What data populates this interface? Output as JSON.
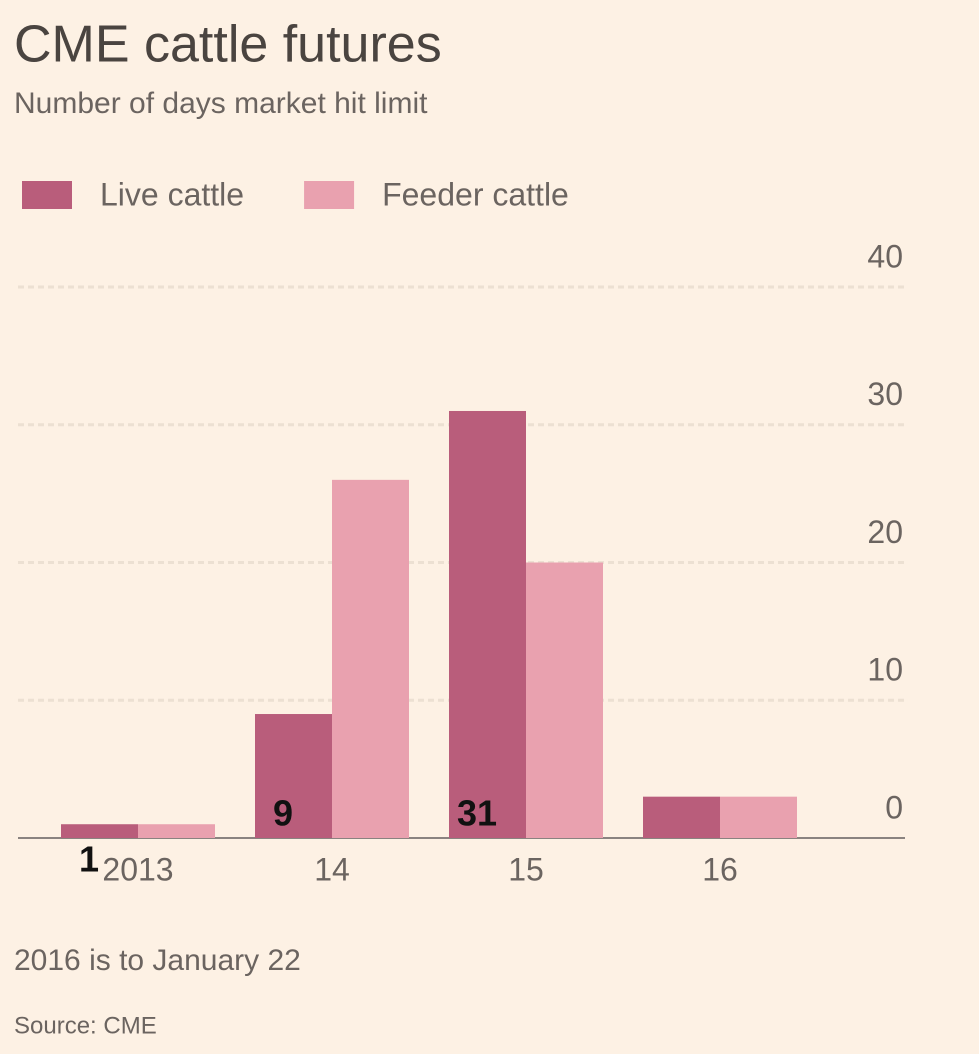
{
  "chart_data": {
    "type": "bar",
    "title": "CME cattle futures",
    "subtitle": "Number of days market hit limit",
    "categories": [
      "2013",
      "14",
      "15",
      "16"
    ],
    "series": [
      {
        "name": "Live cattle",
        "color": "#b95d7b",
        "values": [
          1,
          9,
          31,
          3
        ],
        "value_labels": [
          "1",
          "9",
          "31",
          null
        ]
      },
      {
        "name": "Feeder cattle",
        "color": "#e9a1af",
        "values": [
          1,
          26,
          20,
          3
        ]
      }
    ],
    "ylim": [
      0,
      40
    ],
    "yticks": [
      0,
      10,
      20,
      30,
      40
    ],
    "grid": true,
    "note": "2016 is to January 22",
    "source": "Source: CME"
  }
}
